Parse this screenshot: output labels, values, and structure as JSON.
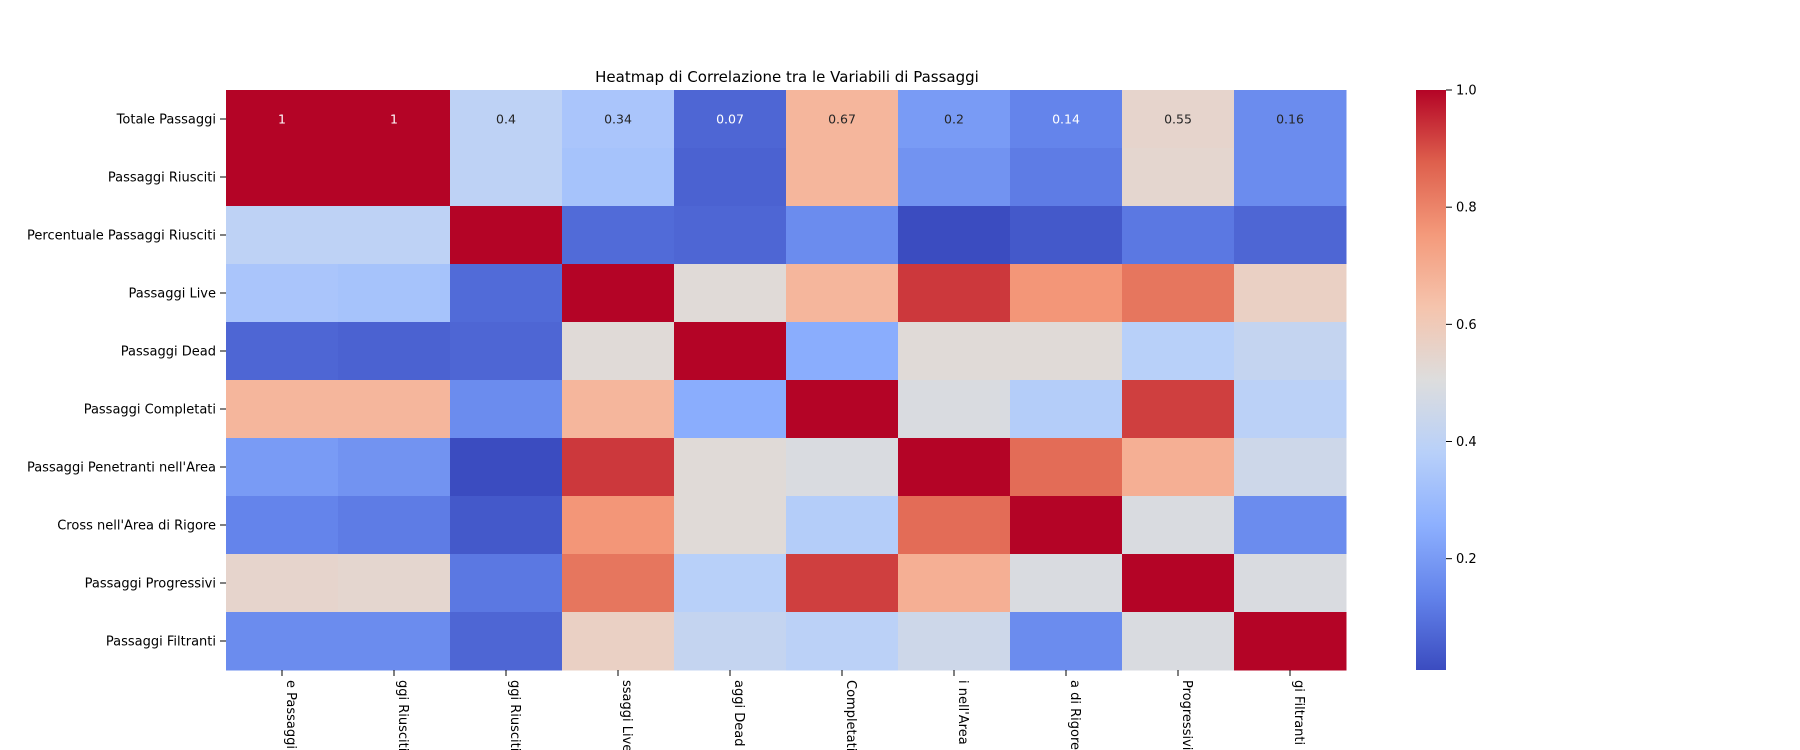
{
  "chart_data": {
    "type": "heatmap",
    "title": "Heatmap di Correlazione tra le Variabili di Passaggi",
    "colormap": "coolwarm",
    "vmin": 0.01,
    "vmax": 1.0,
    "rows": [
      "Totale Passaggi",
      "Passaggi Riusciti",
      "Percentuale Passaggi Riusciti",
      "Passaggi Live",
      "Passaggi Dead",
      "Passaggi Completati",
      "Passaggi Penetranti nell'Area",
      "Cross nell'Area di Rigore",
      "Passaggi Progressivi",
      "Passaggi Filtranti"
    ],
    "columns_visible": [
      "e Passaggi",
      "ggi Riusciti",
      "ggi Riusciti",
      "ssaggi Live",
      "aggi Dead",
      "Completati",
      "i nell'Area",
      "a di Rigore",
      "Progressivi",
      "gi Filtranti"
    ],
    "values": [
      [
        1.0,
        1.0,
        0.4,
        0.34,
        0.07,
        0.67,
        0.2,
        0.14,
        0.55,
        0.16
      ],
      [
        1.0,
        1.0,
        0.4,
        0.33,
        0.06,
        0.67,
        0.18,
        0.12,
        0.54,
        0.16
      ],
      [
        0.4,
        0.4,
        1.0,
        0.08,
        0.07,
        0.16,
        0.01,
        0.04,
        0.11,
        0.07
      ],
      [
        0.34,
        0.33,
        0.08,
        1.0,
        0.52,
        0.67,
        0.93,
        0.76,
        0.83,
        0.57
      ],
      [
        0.07,
        0.06,
        0.07,
        0.52,
        1.0,
        0.25,
        0.52,
        0.52,
        0.38,
        0.42
      ],
      [
        0.67,
        0.67,
        0.16,
        0.67,
        0.25,
        1.0,
        0.49,
        0.37,
        0.92,
        0.39
      ],
      [
        0.2,
        0.18,
        0.01,
        0.93,
        0.52,
        0.49,
        1.0,
        0.85,
        0.69,
        0.45
      ],
      [
        0.14,
        0.12,
        0.04,
        0.76,
        0.52,
        0.37,
        0.85,
        1.0,
        0.49,
        0.16
      ],
      [
        0.55,
        0.54,
        0.11,
        0.83,
        0.38,
        0.92,
        0.69,
        0.49,
        1.0,
        0.49
      ],
      [
        0.16,
        0.16,
        0.07,
        0.57,
        0.42,
        0.39,
        0.45,
        0.16,
        0.49,
        1.0
      ]
    ],
    "annotated_row": 0,
    "annotations": [
      "1",
      "1",
      "0.4",
      "0.34",
      "0.07",
      "0.67",
      "0.2",
      "0.14",
      "0.55",
      "0.16"
    ],
    "colorbar": {
      "ticks": [
        0.2,
        0.4,
        0.6,
        0.8,
        1.0
      ],
      "tick_labels": [
        "0.2",
        "0.4",
        "0.6",
        "0.8",
        "1.0"
      ]
    }
  }
}
